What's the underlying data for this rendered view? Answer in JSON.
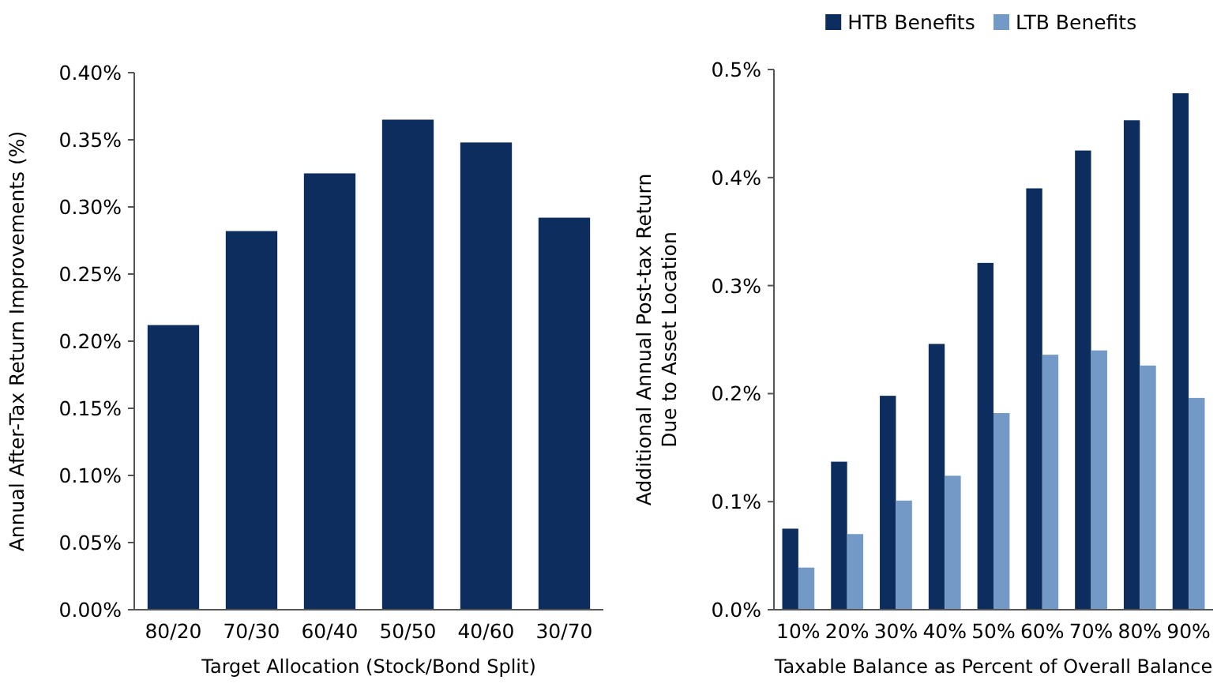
{
  "chart_data": [
    {
      "type": "bar",
      "xlabel": "Target Allocation (Stock/Bond Split)",
      "ylabel": "Annual After-Tax Return Improvements (%)",
      "categories": [
        "80/20",
        "70/30",
        "60/40",
        "50/50",
        "40/60",
        "30/70"
      ],
      "series": [
        {
          "color": "#0c2d5e",
          "values": [
            0.212,
            0.282,
            0.325,
            0.365,
            0.348,
            0.292
          ]
        }
      ],
      "ylim": [
        0,
        0.4
      ],
      "yticks": [
        {
          "value": 0,
          "label": "0.00%"
        },
        {
          "value": 0.05,
          "label": "0.05%"
        },
        {
          "value": 0.1,
          "label": "0.10%"
        },
        {
          "value": 0.15,
          "label": "0.15%"
        },
        {
          "value": 0.2,
          "label": "0.20%"
        },
        {
          "value": 0.25,
          "label": "0.25%"
        },
        {
          "value": 0.3,
          "label": "0.30%"
        },
        {
          "value": 0.35,
          "label": "0.35%"
        },
        {
          "value": 0.4,
          "label": "0.40%"
        }
      ],
      "grid": false,
      "legend": false
    },
    {
      "type": "bar",
      "xlabel": "Taxable Balance as Percent of Overall Balance",
      "ylabel": "Additional Annual Post-tax Return\nDue to Asset Location",
      "categories": [
        "10%",
        "20%",
        "30%",
        "40%",
        "50%",
        "60%",
        "70%",
        "80%",
        "90%"
      ],
      "series": [
        {
          "name": "HTB Benefits",
          "color": "#0c2d5e",
          "values": [
            0.075,
            0.137,
            0.198,
            0.246,
            0.321,
            0.39,
            0.425,
            0.453,
            0.478
          ]
        },
        {
          "name": "LTB Benefits",
          "color": "#7399c6",
          "values": [
            0.039,
            0.07,
            0.101,
            0.124,
            0.182,
            0.236,
            0.24,
            0.226,
            0.196
          ]
        }
      ],
      "ylim": [
        0,
        0.5
      ],
      "yticks": [
        {
          "value": 0,
          "label": "0.0%"
        },
        {
          "value": 0.1,
          "label": "0.1%"
        },
        {
          "value": 0.2,
          "label": "0.2%"
        },
        {
          "value": 0.3,
          "label": "0.3%"
        },
        {
          "value": 0.4,
          "label": "0.4%"
        },
        {
          "value": 0.5,
          "label": "0.5%"
        }
      ],
      "grid": false,
      "legend": "top"
    }
  ]
}
